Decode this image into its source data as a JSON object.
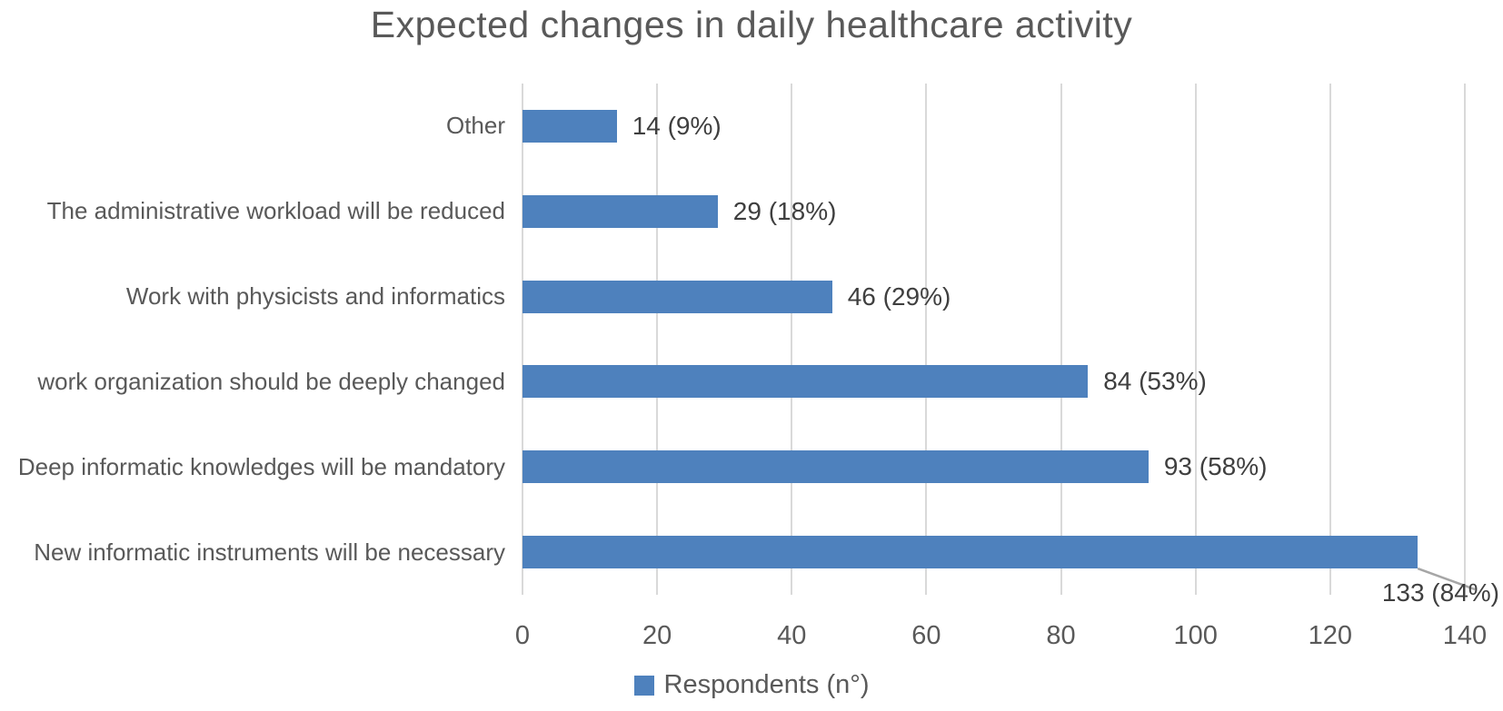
{
  "chart_data": {
    "type": "bar",
    "orientation": "horizontal",
    "title": "Expected changes in daily healthcare activity",
    "categories": [
      "Other",
      "The administrative workload will be reduced",
      "Work with physicists and informatics",
      "work organization should be deeply changed",
      "Deep informatic knowledges will be mandatory",
      "New informatic instruments will be necessary"
    ],
    "values": [
      14,
      29,
      46,
      84,
      93,
      133
    ],
    "data_labels": [
      "14 (9%)",
      "29 (18%)",
      "46 (29%)",
      "84 (53%)",
      "93 (58%)",
      "133 (84%)"
    ],
    "legend": [
      {
        "label": "Respondents (n°)",
        "color": "#4E81BD"
      }
    ],
    "legend_position": "bottom",
    "xlabel": "",
    "ylabel": "",
    "xlim": [
      0,
      140
    ],
    "x_ticks": [
      0,
      20,
      40,
      60,
      80,
      100,
      120,
      140
    ],
    "grid": "vertical",
    "colors": {
      "bar": "#4E81BD",
      "gridline": "#D9D9D9",
      "title_text": "#595959",
      "category_text": "#595959",
      "axis_text": "#595959",
      "data_label_text": "#3F3F3F",
      "leader_line": "#A6A6A6",
      "background": "#FFFFFF"
    }
  }
}
